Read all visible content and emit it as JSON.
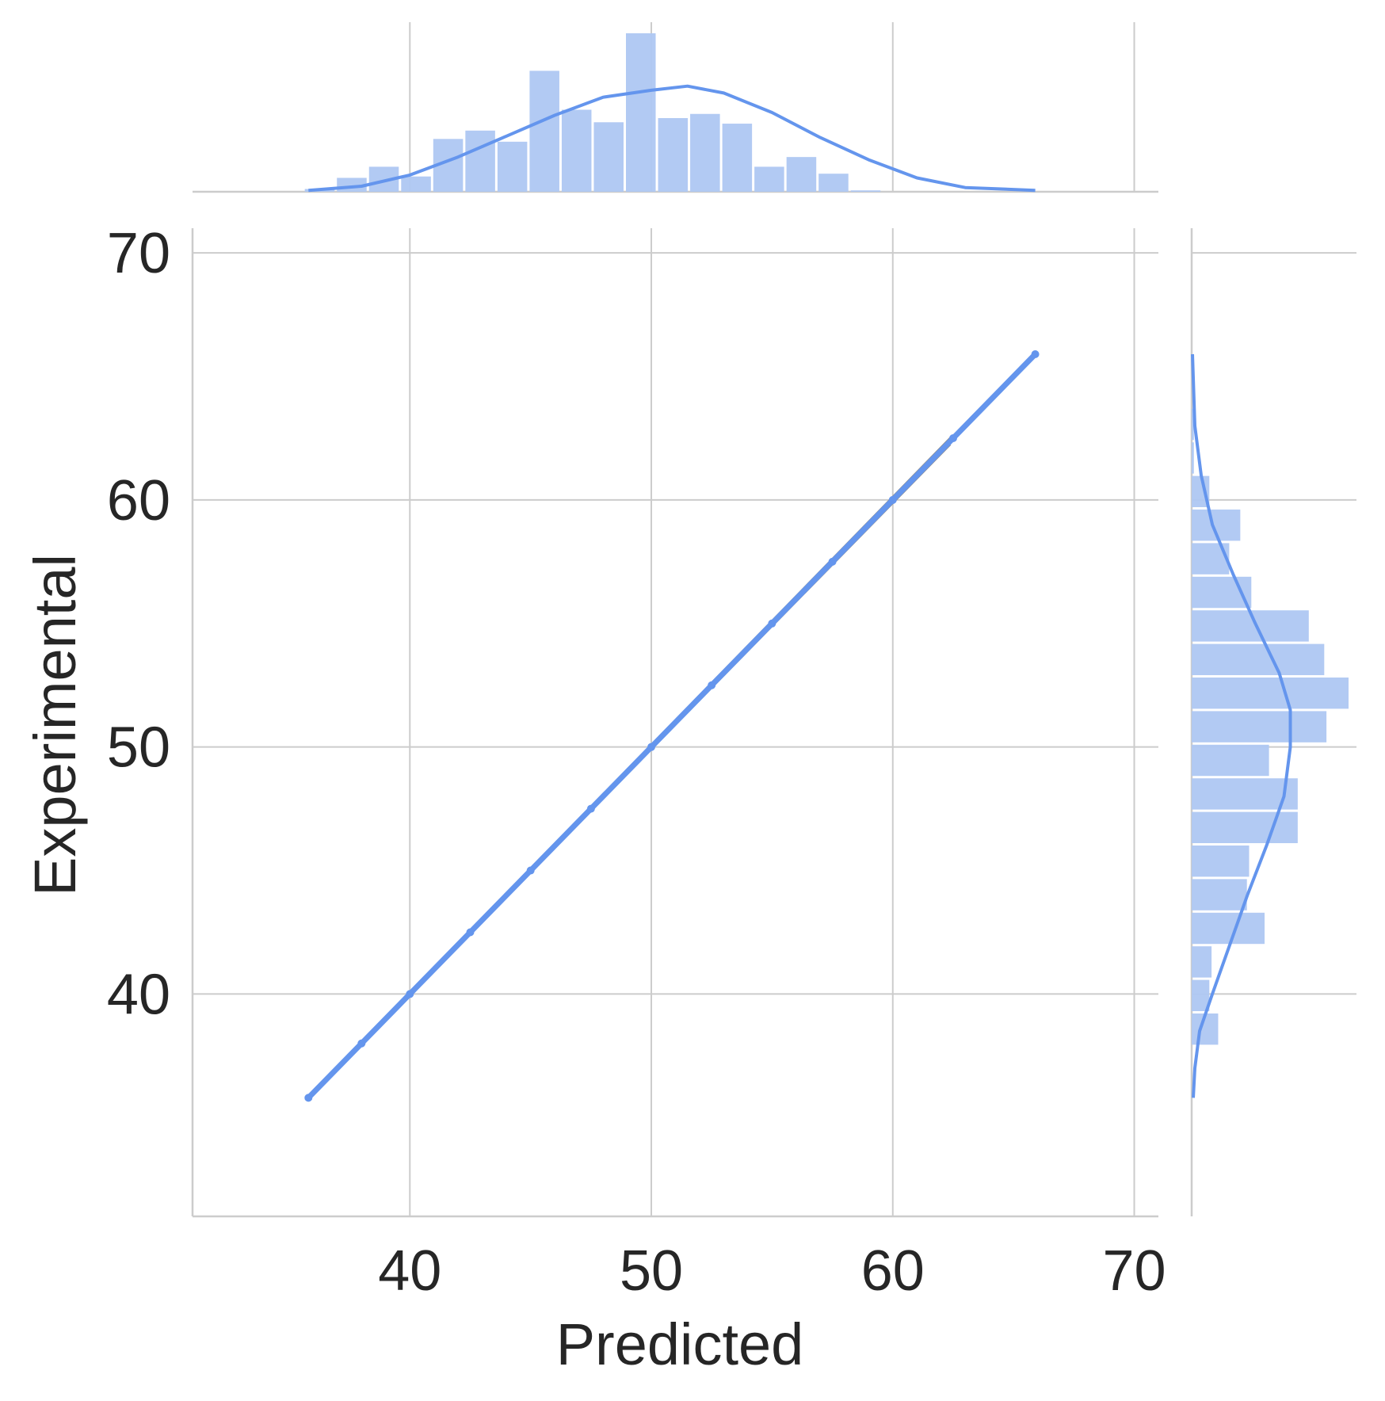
{
  "chart_data": {
    "type": "scatter",
    "title": "",
    "xlabel": "Predicted",
    "ylabel": "Experimental",
    "xlim": [
      31,
      71
    ],
    "ylim": [
      31,
      71
    ],
    "xticks": [
      40,
      50,
      60,
      70
    ],
    "yticks": [
      40,
      50,
      60,
      70
    ],
    "grid": true,
    "colors": {
      "main": "#6495ed",
      "hist": "#aec7f2",
      "line": "#808080",
      "grid": "#cccccc",
      "axis": "#cccccc"
    },
    "series": [
      {
        "type": "scatter",
        "x": [
          35.8,
          38,
          40,
          42.5,
          45,
          47.5,
          50,
          52.5,
          55,
          57.5,
          60,
          62.5,
          65.9
        ],
        "y": [
          35.8,
          38,
          40,
          42.5,
          45,
          47.5,
          50,
          52.5,
          55,
          57.5,
          60,
          62.5,
          65.9
        ]
      },
      {
        "type": "regression",
        "x": [
          35.8,
          65.9
        ],
        "y": [
          35.8,
          65.9
        ]
      }
    ],
    "marginal_x": {
      "bin_start": 35.6,
      "bin_width": 1.33,
      "counts": [
        0.2,
        1.0,
        1.8,
        1.1,
        3.8,
        4.4,
        3.6,
        8.7,
        5.9,
        5.0,
        11.4,
        5.3,
        5.6,
        4.9,
        1.8,
        2.5,
        1.3,
        0.1,
        0,
        0,
        0,
        0,
        0
      ],
      "kde_x": [
        35.8,
        38,
        40,
        42,
        44,
        46,
        48,
        50,
        51.5,
        53,
        55,
        57,
        59,
        61,
        63,
        65.9
      ],
      "kde_y": [
        0.1,
        0.4,
        1.2,
        2.5,
        4.0,
        5.5,
        6.8,
        7.3,
        7.6,
        7.1,
        5.7,
        3.9,
        2.3,
        1.0,
        0.3,
        0.1
      ]
    },
    "marginal_y": {
      "bin_start": 37.9,
      "bin_width": 1.36,
      "counts": [
        1.2,
        0.8,
        0.9,
        3.3,
        2.5,
        2.6,
        4.8,
        4.8,
        3.5,
        6.1,
        7.1,
        6.0,
        5.3,
        2.7,
        1.7,
        2.2,
        0.8,
        0.1,
        0.1
      ],
      "kde_y": [
        35.8,
        37,
        38.5,
        40,
        42,
        44,
        46,
        48,
        50,
        51.5,
        53,
        55,
        57,
        59,
        61,
        63,
        65.9
      ],
      "kde_x": [
        0.1,
        0.2,
        0.5,
        1.3,
        2.4,
        3.5,
        4.7,
        5.8,
        6.2,
        6.2,
        5.5,
        4.0,
        2.6,
        1.3,
        0.6,
        0.2,
        0.05
      ]
    }
  }
}
